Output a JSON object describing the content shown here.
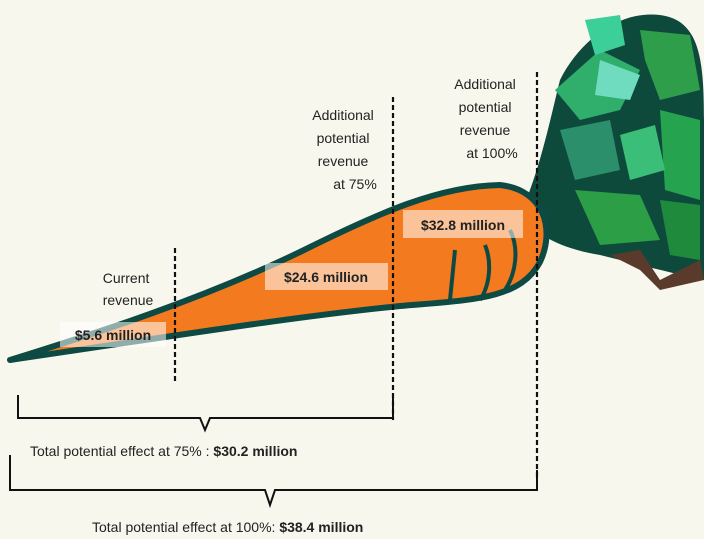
{
  "labels": {
    "current": {
      "lines": [
        "Current",
        "revenue"
      ],
      "value": "$5.6 million"
    },
    "additional_75": {
      "lines": [
        "Additional",
        "potential",
        "revenue",
        "at 75%"
      ],
      "value": "$24.6 million"
    },
    "additional_100": {
      "lines": [
        "Additional",
        "potential",
        "revenue",
        "at 100%"
      ],
      "value": "$32.8 million"
    }
  },
  "totals": [
    {
      "text": "Total potential effect at 75% : ",
      "value": "$30.2 million"
    },
    {
      "text": "Total potential effect at 100%: ",
      "value": "$38.4 million"
    }
  ]
}
